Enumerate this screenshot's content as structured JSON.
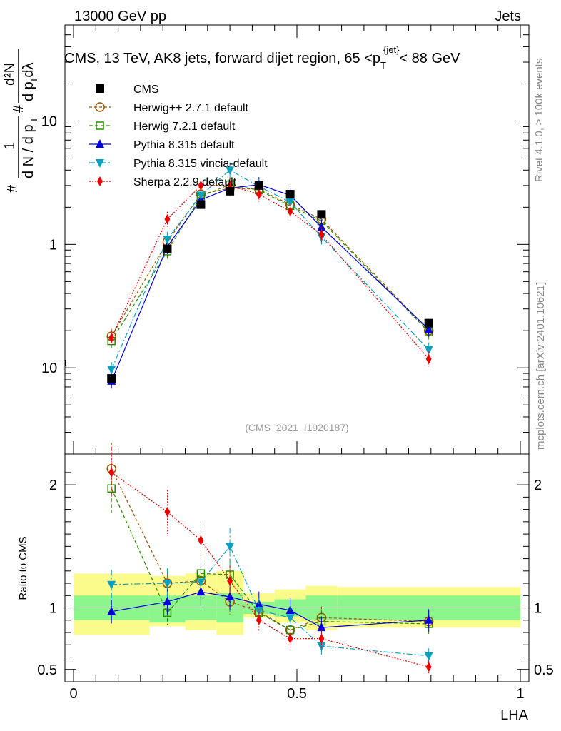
{
  "header": {
    "left": "13000 GeV pp",
    "right": "Jets",
    "rivet": "Rivet 4.1.0, ≥ 100k events",
    "mcplots": "mcplots.cern.ch [arXiv:2401.10621]"
  },
  "chart_data": {
    "type": "line",
    "title": "CMS, 13 TeV, AK8 jets, forward dijet region, 65 <p_T^{jet}< 88 GeV",
    "title_parts": {
      "pre": "CMS, 13 TeV, AK8 jets, forward dijet region, 65 <p",
      "sub": "T",
      "sup": "{jet}",
      "post": "< 88 GeV"
    },
    "ylabel_main": "1/N dN/dp_T dλ",
    "ylabel_ratio": "Ratio to CMS",
    "xlabel": "LHA",
    "analysis_id": "(CMS_2021_I1920187)",
    "xlim": [
      0,
      1
    ],
    "ylim_main": [
      0.02,
      60
    ],
    "ylim_ratio": [
      0.4,
      2.25
    ],
    "y_ticks_main": [
      {
        "v": 0.1,
        "label": "10",
        "sup": "−1"
      },
      {
        "v": 1,
        "label": "1",
        "sup": ""
      },
      {
        "v": 10,
        "label": "10",
        "sup": ""
      }
    ],
    "y_ticks_ratio": [
      {
        "v": 0.5,
        "label": "0.5"
      },
      {
        "v": 1,
        "label": "1"
      },
      {
        "v": 2,
        "label": "2"
      }
    ],
    "x_ticks": [
      {
        "v": 0,
        "label": "0"
      },
      {
        "v": 0.5,
        "label": "0.5"
      },
      {
        "v": 1,
        "label": "1"
      }
    ],
    "x": [
      0.085,
      0.21,
      0.285,
      0.35,
      0.415,
      0.485,
      0.555,
      0.795
    ],
    "bins": [
      [
        0,
        0.17
      ],
      [
        0.17,
        0.25
      ],
      [
        0.25,
        0.32
      ],
      [
        0.32,
        0.38
      ],
      [
        0.38,
        0.45
      ],
      [
        0.45,
        0.52
      ],
      [
        0.52,
        0.59
      ],
      [
        0.59,
        1.0
      ]
    ],
    "data": {
      "name": "CMS",
      "values": [
        0.082,
        0.92,
        2.1,
        2.7,
        3.0,
        2.55,
        1.75,
        0.23
      ],
      "color": "#000000"
    },
    "band_inner": [
      0.9,
      0.88,
      0.9,
      0.88,
      0.95,
      0.93,
      0.9,
      0.9
    ],
    "band_inner_hi": [
      1.1,
      1.1,
      1.1,
      1.12,
      1.05,
      1.07,
      1.1,
      1.1
    ],
    "band_outer": [
      0.78,
      0.85,
      0.82,
      0.78,
      0.92,
      0.88,
      0.82,
      0.84
    ],
    "band_outer_hi": [
      1.28,
      1.26,
      1.28,
      1.3,
      1.12,
      1.15,
      1.18,
      1.17
    ],
    "band_colors": {
      "inner": "#8cf58c",
      "outer": "#fbfb8c"
    },
    "series": [
      {
        "name": "Herwig++ 2.7.1 default",
        "color": "#a05000",
        "dash": "4,3",
        "marker": "circle-open",
        "values": [
          0.18,
          1.05,
          2.55,
          2.85,
          2.8,
          2.1,
          1.6,
          0.2
        ],
        "ratio": [
          2.13,
          1.2,
          1.22,
          1.05,
          0.97,
          0.82,
          0.92,
          0.89
        ]
      },
      {
        "name": "Herwig 7.2.1 default",
        "color": "#2a8a00",
        "dash": "5,3",
        "marker": "square-open",
        "values": [
          0.165,
          0.88,
          2.45,
          3.05,
          2.75,
          2.05,
          1.55,
          0.195
        ],
        "ratio": [
          1.97,
          0.96,
          1.28,
          1.27,
          0.96,
          0.82,
          0.89,
          0.87
        ]
      },
      {
        "name": "Pythia 8.315 default",
        "color": "#0000dd",
        "dash": "",
        "marker": "triangle-up",
        "values": [
          0.078,
          0.96,
          2.3,
          2.85,
          3.05,
          2.5,
          1.38,
          0.205
        ],
        "ratio": [
          0.97,
          1.05,
          1.13,
          1.09,
          1.03,
          0.98,
          0.84,
          0.9
        ]
      },
      {
        "name": "Pythia 8.315 vincia-default",
        "color": "#0aa0c0",
        "dash": "8,3,2,3",
        "marker": "triangle-down",
        "values": [
          0.097,
          1.1,
          2.5,
          4.0,
          2.95,
          2.2,
          1.15,
          0.14
        ],
        "ratio": [
          1.19,
          1.2,
          1.21,
          1.5,
          0.98,
          0.92,
          0.69,
          0.61
        ]
      },
      {
        "name": "Sherpa 2.2.9 default",
        "color": "#ee0000",
        "dash": "2,2",
        "marker": "diamond",
        "values": [
          0.175,
          1.6,
          3.0,
          3.0,
          2.55,
          1.85,
          1.2,
          0.118
        ],
        "ratio": [
          2.1,
          1.78,
          1.55,
          1.22,
          0.9,
          0.75,
          0.75,
          0.52
        ]
      }
    ],
    "legend_position": "top-left",
    "legend_entries": [
      "CMS",
      "Herwig++ 2.7.1 default",
      "Herwig 7.2.1 default",
      "Pythia 8.315 default",
      "Pythia 8.315 vincia-default",
      "Sherpa 2.2.9 default"
    ]
  }
}
